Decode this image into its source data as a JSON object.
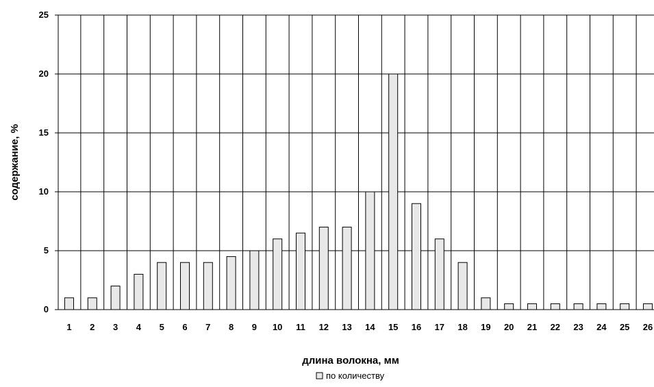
{
  "chart_data": {
    "type": "bar",
    "categories": [
      "1",
      "2",
      "3",
      "4",
      "5",
      "6",
      "7",
      "8",
      "9",
      "10",
      "11",
      "12",
      "13",
      "14",
      "15",
      "16",
      "17",
      "18",
      "19",
      "20",
      "21",
      "22",
      "23",
      "24",
      "25",
      "26"
    ],
    "series": [
      {
        "name": "по количеству",
        "values": [
          1,
          1,
          2,
          3,
          4,
          4,
          4,
          4.5,
          5,
          6,
          6.5,
          7,
          7,
          10,
          20,
          9,
          6,
          4,
          1,
          0.5,
          0.5,
          0.5,
          0.5,
          0.5,
          0.5,
          0.5
        ]
      }
    ],
    "title": "",
    "xlabel": "длина волокна, мм",
    "ylabel": "содержание, %",
    "ylim": [
      0,
      25
    ],
    "yticks": [
      "0",
      "5",
      "10",
      "15",
      "20",
      "25"
    ],
    "grid": true,
    "legend_position": "bottom-center",
    "colors": {
      "bar_fill": "#e8e8e8",
      "bar_stroke": "#000000",
      "grid": "#000000"
    }
  }
}
